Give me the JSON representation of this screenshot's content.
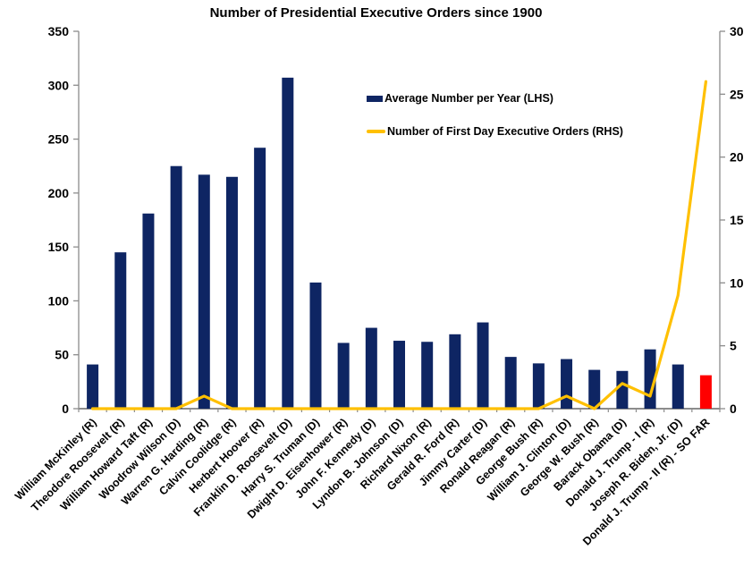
{
  "title": "Number of Presidential Executive Orders since 1900",
  "colors": {
    "bar": "#0E2563",
    "bar_highlight": "#FF0000",
    "line": "#FFC000",
    "axis": "#8C8C8C",
    "text": "#000000"
  },
  "legend": {
    "items": [
      {
        "label": "Average Number per Year (LHS)",
        "marker": "square",
        "color": "#0E2563"
      },
      {
        "label": "Number of First Day Executive Orders (RHS)",
        "marker": "line",
        "color": "#FFC000"
      }
    ]
  },
  "chart_data": {
    "type": "bar",
    "title": "Number of Presidential Executive Orders since 1900",
    "categories": [
      "William McKinley (R)",
      "Theodore Roosevelt (R)",
      "William Howard Taft (R)",
      "Woodrow Wilson (D)",
      "Warren G. Harding (R)",
      "Calvin Coolidge (R)",
      "Herbert Hoover (R)",
      "Franklin D. Roosevelt (D)",
      "Harry S. Truman (D)",
      "Dwight D. Eisenhower (R)",
      "John F. Kennedy (D)",
      "Lyndon B. Johnson (D)",
      "Richard Nixon (R)",
      "Gerald R. Ford (R)",
      "Jimmy Carter (D)",
      "Ronald Reagan (R)",
      "George Bush (R)",
      "William J. Clinton (D)",
      "George W. Bush (R)",
      "Barack Obama (D)",
      "Donald J. Trump - I (R)",
      "Joseph R. Biden, Jr. (D)",
      "Donald J. Trump - II (R) - SO FAR"
    ],
    "series": [
      {
        "name": "Average Number per Year (LHS)",
        "type": "bar",
        "axis": "left",
        "color": "#0E2563",
        "highlight_index": 22,
        "highlight_color": "#FF0000",
        "values": [
          41,
          145,
          181,
          225,
          217,
          215,
          242,
          307,
          117,
          61,
          75,
          63,
          62,
          69,
          80,
          48,
          42,
          46,
          36,
          35,
          55,
          41,
          31
        ]
      },
      {
        "name": "Number of First Day Executive Orders (RHS)",
        "type": "line",
        "axis": "right",
        "color": "#FFC000",
        "values": [
          0,
          0,
          0,
          0,
          1,
          0,
          0,
          0,
          0,
          0,
          0,
          0,
          0,
          0,
          0,
          0,
          0,
          1,
          0,
          2,
          1,
          9,
          26
        ]
      }
    ],
    "left_axis": {
      "min": 0,
      "max": 350,
      "step": 50,
      "tick_labels": [
        "0",
        "50",
        "100",
        "150",
        "200",
        "250",
        "300",
        "350"
      ]
    },
    "right_axis": {
      "min": 0,
      "max": 30,
      "step": 5,
      "tick_labels": [
        "0",
        "5",
        "10",
        "15",
        "20",
        "25",
        "30"
      ]
    },
    "grid": false,
    "legend_position": "upper-middle"
  }
}
